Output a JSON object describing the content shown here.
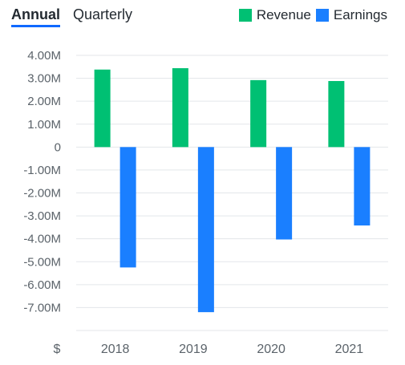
{
  "tabs": [
    {
      "label": "Annual",
      "active": true
    },
    {
      "label": "Quarterly",
      "active": false
    }
  ],
  "legend": [
    {
      "name": "Revenue",
      "color": "#00c073"
    },
    {
      "name": "Earnings",
      "color": "#1a7fff"
    }
  ],
  "currency_label": "$",
  "chart_data": {
    "type": "bar",
    "categories": [
      "2018",
      "2019",
      "2020",
      "2021"
    ],
    "series": [
      {
        "name": "Revenue",
        "color": "#00c073",
        "values": [
          3380000,
          3440000,
          2920000,
          2880000
        ]
      },
      {
        "name": "Earnings",
        "color": "#1a7fff",
        "values": [
          -5250000,
          -7200000,
          -4030000,
          -3420000
        ]
      }
    ],
    "yticks": [
      4000000,
      3000000,
      2000000,
      1000000,
      0,
      -1000000,
      -2000000,
      -3000000,
      -4000000,
      -5000000,
      -6000000,
      -7000000
    ],
    "ytick_labels": [
      "4.00M",
      "3.00M",
      "2.00M",
      "1.00M",
      "0",
      "-1.00M",
      "-2.00M",
      "-3.00M",
      "-4.00M",
      "-5.00M",
      "-6.00M",
      "-7.00M"
    ],
    "ylim": [
      -8000000,
      4000000
    ],
    "grid": true,
    "legend_position": "top-right",
    "title": "",
    "xlabel": "",
    "ylabel": ""
  }
}
